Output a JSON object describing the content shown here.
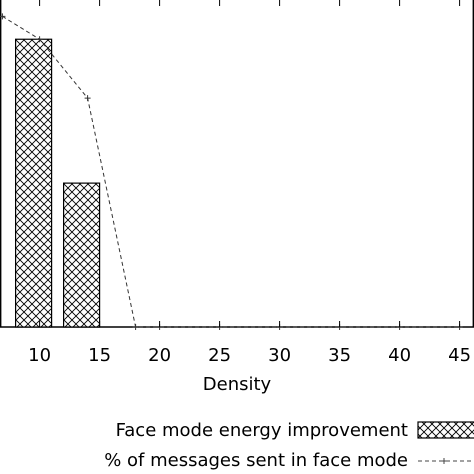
{
  "chart_data": {
    "type": "bar",
    "xlabel": "Density",
    "ylabel": "",
    "x_ticks": [
      10,
      15,
      20,
      25,
      30,
      35,
      40,
      45
    ],
    "xlim": [
      6.7,
      46.2
    ],
    "ylim": [
      0,
      100
    ],
    "grid": false,
    "legend_position": "bottom-right",
    "series": [
      {
        "name": "Face mode energy improvement",
        "kind": "bar",
        "style": "crosshatch",
        "x": [
          9.5,
          13.5
        ],
        "values": [
          88,
          44
        ]
      },
      {
        "name": "% of messages sent in face mode",
        "kind": "line",
        "style": "dashed with + markers",
        "x": [
          6.9,
          10,
          14,
          18,
          20,
          25,
          30,
          35,
          40,
          45
        ],
        "values": [
          95,
          88,
          70,
          0,
          0,
          0,
          0,
          0,
          0,
          0
        ]
      }
    ]
  }
}
